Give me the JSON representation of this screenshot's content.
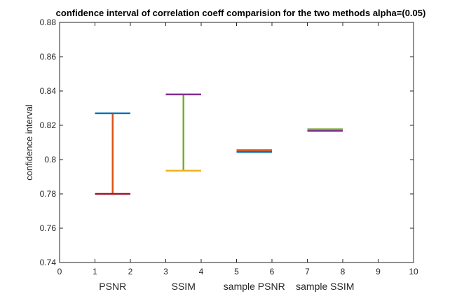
{
  "chart_data": {
    "type": "errorbar",
    "title": "confidence interval of correlation coeff comparision  for the two methods alpha=(0.05)",
    "xlabel": "",
    "ylabel": "confidence interval",
    "xlim": [
      0,
      10
    ],
    "ylim": [
      0.74,
      0.88
    ],
    "xticks": [
      "0",
      "1",
      "2",
      "3",
      "4",
      "5",
      "6",
      "7",
      "8",
      "9",
      "10"
    ],
    "yticks": [
      "0.74",
      "0.76",
      "0.78",
      "0.8",
      "0.82",
      "0.84",
      "0.86",
      "0.88"
    ],
    "grid": false,
    "category_labels": [
      {
        "text": "PSNR",
        "x": 1.5
      },
      {
        "text": "SSIM",
        "x": 3.5
      },
      {
        "text": "sample PSNR",
        "x": 5.5
      },
      {
        "text": "sample SSIM",
        "x": 7.5
      }
    ],
    "intervals": [
      {
        "x": [
          1,
          2
        ],
        "center": 1.5,
        "lower": 0.78,
        "upper": 0.827,
        "lower_color": "#A2142F",
        "upper_color": "#0072BD",
        "vertical_color": "#D95319"
      },
      {
        "x": [
          3,
          4
        ],
        "center": 3.5,
        "lower": 0.7935,
        "upper": 0.838,
        "lower_color": "#EDB120",
        "upper_color": "#7E2F8E",
        "vertical_color": "#77AC30"
      },
      {
        "x": [
          5,
          6
        ],
        "center": 5.5,
        "lower": 0.8045,
        "upper": 0.8055,
        "lower_color": "#0072BD",
        "upper_color": "#D95319",
        "vertical_color": "#EDB120"
      },
      {
        "x": [
          7,
          8
        ],
        "center": 7.5,
        "lower": 0.8168,
        "upper": 0.8177,
        "lower_color": "#7E2F8E",
        "upper_color": "#77AC30",
        "vertical_color": "#4DBEEE"
      }
    ]
  }
}
